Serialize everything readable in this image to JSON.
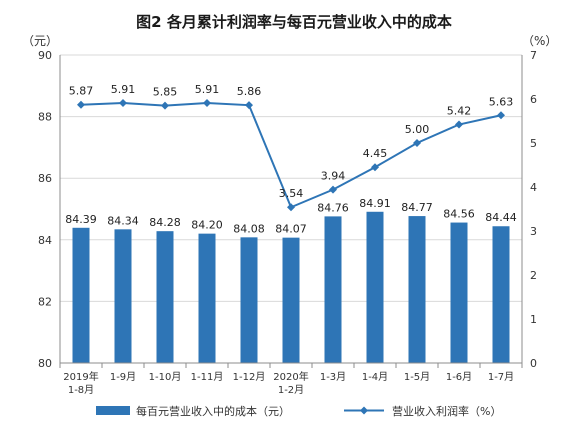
{
  "chart_data": {
    "type": "bar",
    "title": "图2  各月累计利润率与每百元营业收入中的成本",
    "left_unit": "（元）",
    "right_unit": "（%）",
    "categories": [
      "2019年\n1-8月",
      "1-9月",
      "1-10月",
      "1-11月",
      "1-12月",
      "2020年\n1-2月",
      "1-3月",
      "1-4月",
      "1-5月",
      "1-6月",
      "1-7月"
    ],
    "series": [
      {
        "name": "每百元营业收入中的成本（元）",
        "type": "bar",
        "axis": "left",
        "values": [
          84.39,
          84.34,
          84.28,
          84.2,
          84.08,
          84.07,
          84.76,
          84.91,
          84.77,
          84.56,
          84.44
        ],
        "labels": [
          "84.39",
          "84.34",
          "84.28",
          "84.20",
          "84.08",
          "84.07",
          "84.76",
          "84.91",
          "84.77",
          "84.56",
          "84.44"
        ]
      },
      {
        "name": "营业收入利润率（%）",
        "type": "line",
        "axis": "right",
        "values": [
          5.87,
          5.91,
          5.85,
          5.91,
          5.86,
          3.54,
          3.94,
          4.45,
          5.0,
          5.42,
          5.63
        ],
        "labels": [
          "5.87",
          "5.91",
          "5.85",
          "5.91",
          "5.86",
          "3.54",
          "3.94",
          "4.45",
          "5.00",
          "5.42",
          "5.63"
        ]
      }
    ],
    "ylim_left": [
      80,
      90
    ],
    "yticks_left": [
      "80",
      "82",
      "84",
      "86",
      "88",
      "90"
    ],
    "ylim_right": [
      0,
      7
    ],
    "yticks_right": [
      "0",
      "1",
      "2",
      "3",
      "4",
      "5",
      "6",
      "7"
    ],
    "grid": true,
    "legend_position": "bottom",
    "colors": {
      "bar": "#2e75b6",
      "line": "#2e75b6"
    }
  }
}
